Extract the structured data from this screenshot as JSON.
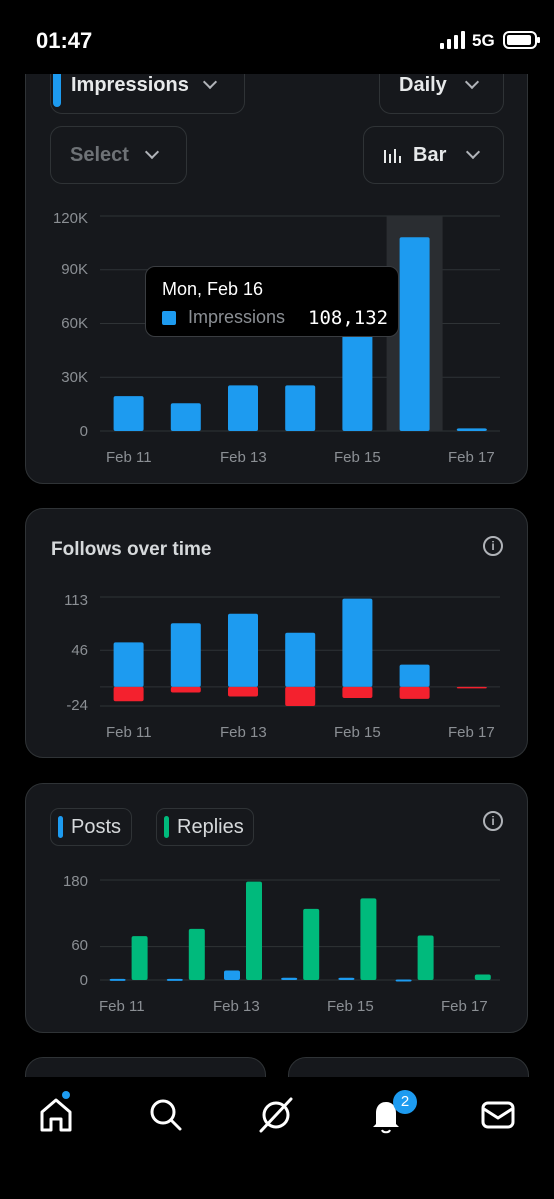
{
  "status": {
    "time": "01:47",
    "network": "5G"
  },
  "impressions_card": {
    "metric_select": "Impressions",
    "period_select": "Daily",
    "compare_select": "Select",
    "chart_type_select": "Bar",
    "tooltip": {
      "date": "Mon, Feb 16",
      "label": "Impressions",
      "value": "108,132"
    }
  },
  "follows_card": {
    "title": "Follows over time",
    "info_icon": "info-icon"
  },
  "posts_card": {
    "legend": [
      {
        "label": "Posts",
        "color": "#1d9bf0"
      },
      {
        "label": "Replies",
        "color": "#00ba7c"
      }
    ],
    "info_icon": "info-icon"
  },
  "bottom_nav": {
    "items": [
      "home-icon",
      "search-icon",
      "grok-icon",
      "notifications-icon",
      "messages-icon"
    ],
    "notifications_badge": "2"
  },
  "colors": {
    "accent": "#1d9bf0",
    "negative": "#f4212e",
    "replies": "#00ba7c"
  },
  "chart_data": [
    {
      "type": "bar",
      "categories": [
        "Feb 11",
        "Feb 12",
        "Feb 13",
        "Feb 14",
        "Feb 15",
        "Feb 16",
        "Feb 17"
      ],
      "x_tick_labels": [
        "Feb 11",
        "Feb 13",
        "Feb 15",
        "Feb 17"
      ],
      "y_tick_labels": [
        "120K",
        "90K",
        "60K",
        "30K",
        "0"
      ],
      "ylim": [
        0,
        120000
      ],
      "series": [
        {
          "name": "Impressions",
          "values": [
            19500,
            15500,
            25500,
            25500,
            56000,
            108132,
            1500
          ]
        }
      ],
      "highlight_category": "Feb 16",
      "grid": true
    },
    {
      "type": "bar",
      "title": "Follows over time",
      "categories": [
        "Feb 11",
        "Feb 12",
        "Feb 13",
        "Feb 14",
        "Feb 15",
        "Feb 16",
        "Feb 17"
      ],
      "x_tick_labels": [
        "Feb 11",
        "Feb 13",
        "Feb 15",
        "Feb 17"
      ],
      "y_tick_labels": [
        "113",
        "46",
        "-24"
      ],
      "ylim": [
        -24,
        113
      ],
      "series": [
        {
          "values": [
            56,
            80,
            92,
            68,
            111,
            28,
            0
          ]
        },
        {
          "values": [
            -18,
            -7,
            -12,
            -24,
            -14,
            -15,
            -1
          ]
        }
      ],
      "grid": true
    },
    {
      "type": "bar",
      "categories": [
        "Feb 11",
        "Feb 12",
        "Feb 13",
        "Feb 14",
        "Feb 15",
        "Feb 16",
        "Feb 17"
      ],
      "x_tick_labels": [
        "Feb 11",
        "Feb 13",
        "Feb 15",
        "Feb 17"
      ],
      "y_tick_labels": [
        "180",
        "60",
        "0"
      ],
      "ylim": [
        0,
        180
      ],
      "series": [
        {
          "name": "Posts",
          "values": [
            2,
            2,
            17,
            4,
            4,
            1,
            0
          ]
        },
        {
          "name": "Replies",
          "values": [
            79,
            92,
            177,
            128,
            147,
            80,
            10
          ]
        }
      ],
      "legend": "top-left",
      "grid": true
    }
  ]
}
